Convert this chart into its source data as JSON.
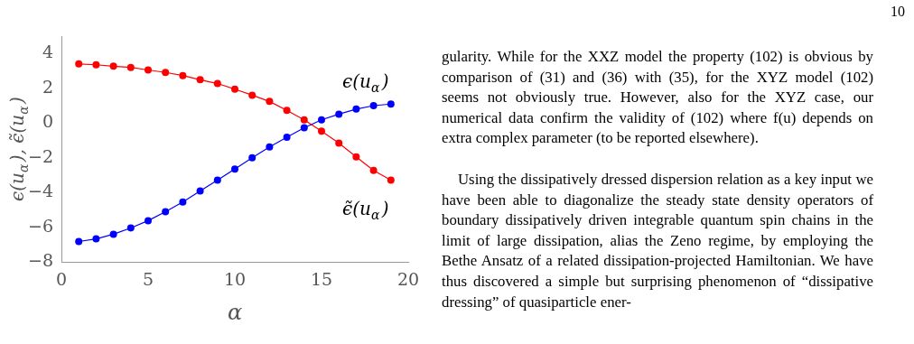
{
  "chart_data": {
    "type": "line",
    "xlabel": "α",
    "ylabel": "ϵ(u$_{α}$), ϵ̃(u$_{α}$)",
    "x": [
      1,
      2,
      3,
      4,
      5,
      6,
      7,
      8,
      9,
      10,
      11,
      12,
      13,
      14,
      15,
      16,
      17,
      18,
      19
    ],
    "series": [
      {
        "name": "ϵ̃(u$_{α}$)",
        "color": "#ff0000",
        "values": [
          3.4,
          3.35,
          3.27,
          3.2,
          3.05,
          2.91,
          2.73,
          2.49,
          2.27,
          1.95,
          1.6,
          1.24,
          0.73,
          0.18,
          -0.47,
          -1.16,
          -1.95,
          -2.73,
          -3.29
        ]
      },
      {
        "name": "ϵ(u$_{α}$)",
        "color": "#0000ff",
        "values": [
          -6.82,
          -6.67,
          -6.4,
          -6.04,
          -5.62,
          -5.11,
          -4.55,
          -3.91,
          -3.29,
          -2.65,
          -2.0,
          -1.38,
          -0.82,
          -0.27,
          0.18,
          0.51,
          0.8,
          1.0,
          1.09
        ]
      }
    ],
    "xlim": [
      0,
      20
    ],
    "xticks": [
      0,
      5,
      10,
      15,
      20
    ],
    "ylim": [
      -8,
      5
    ],
    "yticks": [
      -8,
      -6,
      -4,
      -2,
      0,
      2,
      4
    ],
    "grid": false,
    "legend": false,
    "marker": "circle",
    "line_style": "solid",
    "annotations": [
      "10",
      "gularity. While for the XXZ model the property (102) is obvious by comparison of (31) and (36) with (35), for the XYZ model (102) seems not obviously true. However, also for the XYZ case, our numerical data confirm the validity of (102) where f(u) depends on extra complex parameter (to be reported elsewhere).",
      "Using the dissipatively dressed dispersion relation as a key input we have been able to diagonalize the steady state density operators of boundary dissipatively driven integrable quantum spin chains in the limit of large dissipation, alias the Zeno regime, by employing the Bethe Ansatz of a related dissipation-projected Hamiltonian. We have thus discovered a simple but surprising phenomenon of “dissipative dressing” of quasiparticle ener-"
    ]
  }
}
